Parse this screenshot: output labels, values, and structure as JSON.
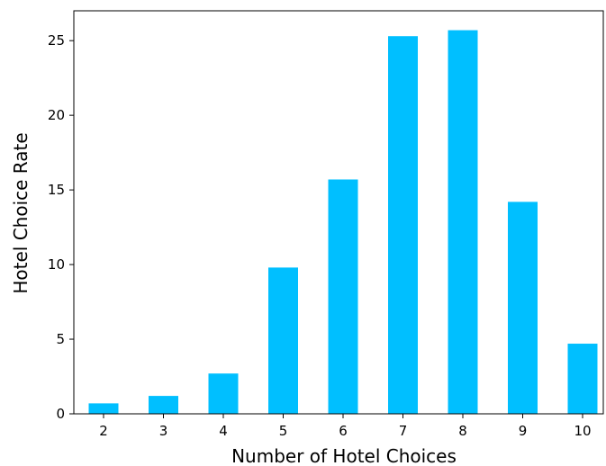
{
  "chart_data": {
    "type": "bar",
    "title": "",
    "xlabel": "Number of Hotel Choices",
    "ylabel": "Hotel Choice Rate",
    "categories": [
      "2",
      "3",
      "4",
      "5",
      "6",
      "7",
      "8",
      "9",
      "10"
    ],
    "values": [
      0.7,
      1.2,
      2.7,
      9.8,
      15.7,
      25.3,
      25.7,
      14.2,
      4.7
    ],
    "ylim": [
      0,
      27
    ],
    "yticks": [
      0,
      5,
      10,
      15,
      20,
      25
    ],
    "grid": false,
    "legend": "none",
    "bar_color": "#00BFFF"
  }
}
